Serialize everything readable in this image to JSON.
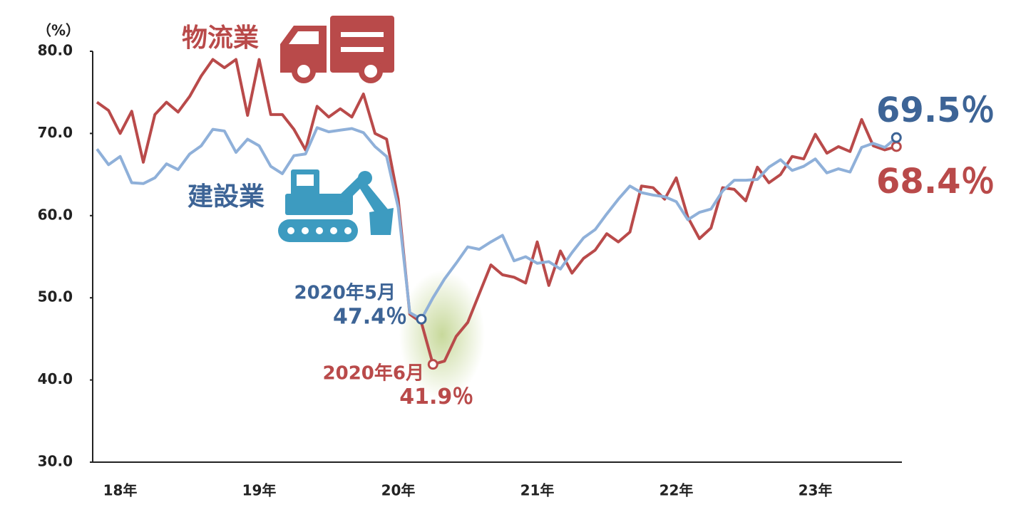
{
  "chart_data": {
    "type": "line",
    "y_axis_label": "（%）",
    "categories": [
      null,
      null,
      "18年",
      null,
      null,
      null,
      null,
      null,
      null,
      null,
      null,
      null,
      null,
      null,
      "19年",
      null,
      null,
      null,
      null,
      null,
      null,
      null,
      null,
      null,
      null,
      null,
      "20年",
      null,
      null,
      null,
      null,
      null,
      null,
      null,
      null,
      null,
      null,
      null,
      "21年",
      null,
      null,
      null,
      null,
      null,
      null,
      null,
      null,
      null,
      null,
      null,
      "22年",
      null,
      null,
      null,
      null,
      null,
      null,
      null,
      null,
      null,
      null,
      null,
      "23年",
      null,
      null,
      null,
      null,
      null,
      null,
      null
    ],
    "ylim": [
      30,
      80
    ],
    "yticks": [
      {
        "value": 30,
        "label": "30.0"
      },
      {
        "value": 40,
        "label": "40.0"
      },
      {
        "value": 50,
        "label": "50.0"
      },
      {
        "value": 60,
        "label": "60.0"
      },
      {
        "value": 70,
        "label": "70.0"
      },
      {
        "value": 80,
        "label": "80.0"
      }
    ],
    "annotations": [
      "2020年5月",
      "2020年6月"
    ],
    "series": [
      {
        "name": "物流業",
        "color": "#b94a4a",
        "values": [
          73.8,
          72.8,
          70.0,
          72.7,
          66.5,
          72.3,
          73.8,
          72.6,
          74.5,
          77.0,
          79.0,
          78.0,
          79.0,
          72.2,
          79.0,
          72.3,
          72.3,
          70.5,
          68.0,
          73.3,
          72.0,
          73.0,
          72.0,
          74.8,
          70.0,
          69.3,
          62.0,
          48.0,
          47.0,
          41.9,
          42.3,
          45.3,
          47.0,
          50.5,
          54.0,
          52.8,
          52.5,
          51.8,
          56.8,
          51.5,
          55.7,
          53.0,
          54.8,
          55.8,
          57.8,
          56.8,
          58.0,
          63.6,
          63.4,
          62.0,
          64.6,
          59.8,
          57.2,
          58.5,
          63.4,
          63.2,
          61.8,
          65.9,
          64.0,
          65.0,
          67.2,
          66.9,
          69.9,
          67.6,
          68.4,
          67.8,
          71.7,
          68.5,
          68.0,
          68.4
        ],
        "value_labels": [
          null,
          null,
          null,
          null,
          null,
          null,
          null,
          null,
          null,
          null,
          null,
          null,
          null,
          null,
          null,
          null,
          null,
          null,
          null,
          null,
          null,
          null,
          null,
          null,
          null,
          null,
          null,
          null,
          null,
          "41.9％",
          null,
          null,
          null,
          null,
          null,
          null,
          null,
          null,
          null,
          null,
          null,
          null,
          null,
          null,
          null,
          null,
          null,
          null,
          null,
          null,
          null,
          null,
          null,
          null,
          null,
          null,
          null,
          null,
          null,
          null,
          null,
          null,
          null,
          null,
          null,
          null,
          null,
          null,
          null,
          "68.4％"
        ]
      },
      {
        "name": "建設業",
        "color": "#8fb0d9",
        "values": [
          68.1,
          66.2,
          67.2,
          64.0,
          63.9,
          64.6,
          66.3,
          65.6,
          67.5,
          68.5,
          70.5,
          70.3,
          67.7,
          69.3,
          68.5,
          66.0,
          65.1,
          67.3,
          67.5,
          70.7,
          70.2,
          70.4,
          70.6,
          70.1,
          68.4,
          67.2,
          61.0,
          48.2,
          47.4,
          50.0,
          52.3,
          54.2,
          56.2,
          55.9,
          56.8,
          57.6,
          54.5,
          55.0,
          54.2,
          54.4,
          53.5,
          55.5,
          57.3,
          58.3,
          60.2,
          62.0,
          63.6,
          62.8,
          62.5,
          62.3,
          61.7,
          59.5,
          60.4,
          60.8,
          63.0,
          64.3,
          64.3,
          64.4,
          65.9,
          66.8,
          65.5,
          66.0,
          66.9,
          65.2,
          65.7,
          65.3,
          68.3,
          68.8,
          68.3,
          69.5
        ],
        "value_labels": [
          null,
          null,
          null,
          null,
          null,
          null,
          null,
          null,
          null,
          null,
          null,
          null,
          null,
          null,
          null,
          null,
          null,
          null,
          null,
          null,
          null,
          null,
          null,
          null,
          null,
          null,
          null,
          null,
          "47.4％",
          null,
          null,
          null,
          null,
          null,
          null,
          null,
          null,
          null,
          null,
          null,
          null,
          null,
          null,
          null,
          null,
          null,
          null,
          null,
          null,
          null,
          null,
          null,
          null,
          null,
          null,
          null,
          null,
          null,
          null,
          null,
          null,
          null,
          null,
          null,
          null,
          null,
          null,
          null,
          null,
          "69.5％"
        ]
      }
    ]
  }
}
